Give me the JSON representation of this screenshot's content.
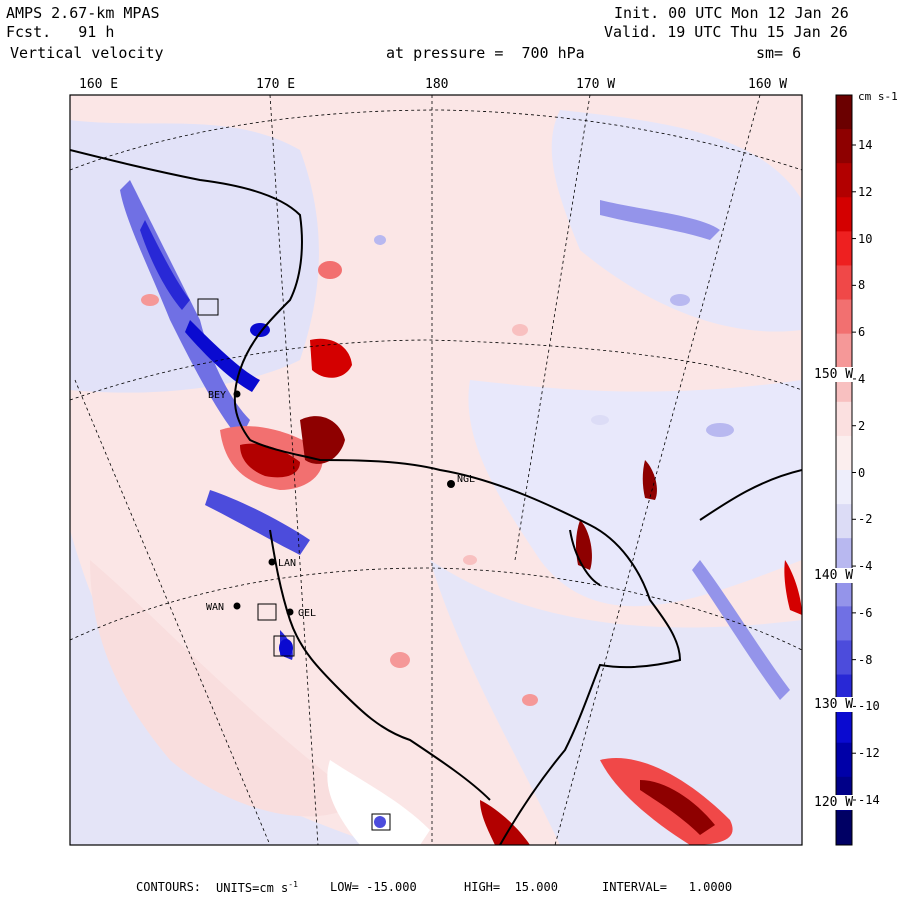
{
  "header": {
    "model": "AMPS 2.67-km MPAS",
    "forecast": "Fcst.   91 h",
    "field": "Vertical velocity",
    "level": "at pressure =  700 hPa",
    "init": "Init. 00 UTC Mon 12 Jan 26",
    "valid": "Valid. 19 UTC Thu 15 Jan 26",
    "smoothing": "sm= 6"
  },
  "longitude_labels": [
    "160 E",
    "170 E",
    "180",
    "170 W",
    "160 W"
  ],
  "latitude_labels": [
    "150 W",
    "140 W",
    "130 W",
    "120 W"
  ],
  "colorbar": {
    "units": "cm s-1",
    "tick_labels": [
      "14",
      "12",
      "10",
      "8",
      "6",
      "4",
      "2",
      "0",
      "-2",
      "-4",
      "-6",
      "-8",
      "-10",
      "-12",
      "-14"
    ],
    "colors": [
      "#6b0000",
      "#8e0000",
      "#b20000",
      "#d40000",
      "#ee2020",
      "#f04848",
      "#f27070",
      "#f59898",
      "#f8c0c0",
      "#fbe0e0",
      "#fbeeee",
      "#eeeefb",
      "#dcdcf6",
      "#b8b8f0",
      "#9494ea",
      "#7070e4",
      "#4c4cdc",
      "#2828d6",
      "#0a0ad0",
      "#0000a8",
      "#000088",
      "#000064"
    ]
  },
  "stations": [
    {
      "label": "NGL"
    },
    {
      "label": "BEY"
    },
    {
      "label": "LAN"
    },
    {
      "label": "WAN"
    },
    {
      "label": "GEL"
    }
  ],
  "footer": {
    "contours": "CONTOURS:",
    "units_prefix": "UNITS=cm s",
    "units_sup": "-1",
    "low": "LOW= -15.000",
    "high": "HIGH=  15.000",
    "interval": "INTERVAL=   1.0000"
  }
}
